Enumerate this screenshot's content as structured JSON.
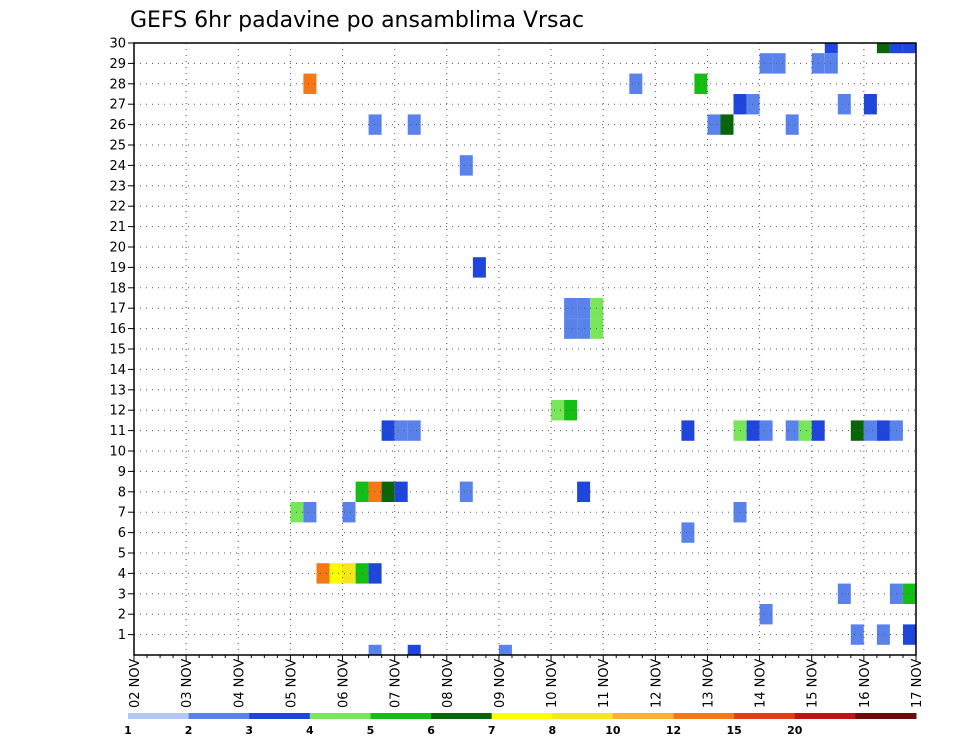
{
  "chart_data": {
    "type": "heatmap",
    "title": "GEFS 6hr padavine po ansamblima Vrsac",
    "y_ticks": [
      "1",
      "2",
      "3",
      "4",
      "5",
      "6",
      "7",
      "8",
      "9",
      "10",
      "11",
      "12",
      "13",
      "14",
      "15",
      "16",
      "17",
      "18",
      "19",
      "20",
      "21",
      "22",
      "23",
      "24",
      "25",
      "26",
      "27",
      "28",
      "29",
      "30"
    ],
    "x_ticks": [
      "02 NOV",
      "03 NOV",
      "04 NOV",
      "05 NOV",
      "06 NOV",
      "07 NOV",
      "08 NOV",
      "09 NOV",
      "10 NOV",
      "11 NOV",
      "12 NOV",
      "13 NOV",
      "14 NOV",
      "15 NOV",
      "16 NOV",
      "17 NOV"
    ],
    "ylim": [
      0,
      30
    ],
    "time_step_hours": 6,
    "grid": true,
    "legend_position": "bottom",
    "legend": {
      "labels": [
        "1",
        "2",
        "3",
        "4",
        "5",
        "6",
        "7",
        "8",
        "10",
        "12",
        "15",
        "20"
      ],
      "colors": [
        "#b4c8f5",
        "#5a82eb",
        "#1e46dc",
        "#78e65a",
        "#14be14",
        "#0a640a",
        "#ffff00",
        "#f5e61e",
        "#ffaf32",
        "#f57814",
        "#e63c14",
        "#be1414",
        "#6e0a0a"
      ]
    },
    "cells": [
      {
        "member": 30,
        "time": "15 NOV 06",
        "cls": 2
      },
      {
        "member": 30,
        "time": "16 NOV 06",
        "cls": 5
      },
      {
        "member": 30,
        "time": "16 NOV 12",
        "cls": 2
      },
      {
        "member": 30,
        "time": "16 NOV 18",
        "cls": 2
      },
      {
        "member": 29,
        "time": "14 NOV 00",
        "cls": 1
      },
      {
        "member": 29,
        "time": "14 NOV 06",
        "cls": 1
      },
      {
        "member": 29,
        "time": "15 NOV 00",
        "cls": 1
      },
      {
        "member": 29,
        "time": "15 NOV 06",
        "cls": 1
      },
      {
        "member": 28,
        "time": "05 NOV 06",
        "cls": 9
      },
      {
        "member": 28,
        "time": "11 NOV 12",
        "cls": 1
      },
      {
        "member": 28,
        "time": "12 NOV 18",
        "cls": 4
      },
      {
        "member": 27,
        "time": "13 NOV 12",
        "cls": 2
      },
      {
        "member": 27,
        "time": "13 NOV 18",
        "cls": 1
      },
      {
        "member": 27,
        "time": "15 NOV 12",
        "cls": 1
      },
      {
        "member": 27,
        "time": "16 NOV 00",
        "cls": 2
      },
      {
        "member": 26,
        "time": "06 NOV 12",
        "cls": 1
      },
      {
        "member": 26,
        "time": "07 NOV 06",
        "cls": 1
      },
      {
        "member": 26,
        "time": "13 NOV 00",
        "cls": 1
      },
      {
        "member": 26,
        "time": "13 NOV 06",
        "cls": 5
      },
      {
        "member": 26,
        "time": "14 NOV 12",
        "cls": 1
      },
      {
        "member": 24,
        "time": "08 NOV 06",
        "cls": 1
      },
      {
        "member": 19,
        "time": "08 NOV 12",
        "cls": 2
      },
      {
        "member": 17,
        "time": "10 NOV 06",
        "cls": 1
      },
      {
        "member": 17,
        "time": "10 NOV 12",
        "cls": 1
      },
      {
        "member": 17,
        "time": "10 NOV 18",
        "cls": 3
      },
      {
        "member": 16,
        "time": "10 NOV 06",
        "cls": 1
      },
      {
        "member": 16,
        "time": "10 NOV 12",
        "cls": 1
      },
      {
        "member": 16,
        "time": "10 NOV 18",
        "cls": 3
      },
      {
        "member": 12,
        "time": "10 NOV 00",
        "cls": 3
      },
      {
        "member": 12,
        "time": "10 NOV 06",
        "cls": 4
      },
      {
        "member": 11,
        "time": "06 NOV 18",
        "cls": 2
      },
      {
        "member": 11,
        "time": "07 NOV 00",
        "cls": 1
      },
      {
        "member": 11,
        "time": "07 NOV 06",
        "cls": 1
      },
      {
        "member": 11,
        "time": "12 NOV 12",
        "cls": 2
      },
      {
        "member": 11,
        "time": "13 NOV 12",
        "cls": 3
      },
      {
        "member": 11,
        "time": "13 NOV 18",
        "cls": 2
      },
      {
        "member": 11,
        "time": "14 NOV 00",
        "cls": 1
      },
      {
        "member": 11,
        "time": "14 NOV 12",
        "cls": 1
      },
      {
        "member": 11,
        "time": "14 NOV 18",
        "cls": 3
      },
      {
        "member": 11,
        "time": "15 NOV 00",
        "cls": 2
      },
      {
        "member": 11,
        "time": "15 NOV 18",
        "cls": 5
      },
      {
        "member": 11,
        "time": "16 NOV 00",
        "cls": 1
      },
      {
        "member": 11,
        "time": "16 NOV 06",
        "cls": 2
      },
      {
        "member": 11,
        "time": "16 NOV 12",
        "cls": 1
      },
      {
        "member": 8,
        "time": "06 NOV 06",
        "cls": 4
      },
      {
        "member": 8,
        "time": "06 NOV 12",
        "cls": 9
      },
      {
        "member": 8,
        "time": "06 NOV 18",
        "cls": 5
      },
      {
        "member": 8,
        "time": "07 NOV 00",
        "cls": 2
      },
      {
        "member": 8,
        "time": "08 NOV 06",
        "cls": 1
      },
      {
        "member": 8,
        "time": "10 NOV 12",
        "cls": 2
      },
      {
        "member": 7,
        "time": "05 NOV 00",
        "cls": 3
      },
      {
        "member": 7,
        "time": "05 NOV 06",
        "cls": 1
      },
      {
        "member": 7,
        "time": "06 NOV 00",
        "cls": 1
      },
      {
        "member": 7,
        "time": "13 NOV 12",
        "cls": 1
      },
      {
        "member": 6,
        "time": "12 NOV 12",
        "cls": 1
      },
      {
        "member": 4,
        "time": "05 NOV 12",
        "cls": 9
      },
      {
        "member": 4,
        "time": "05 NOV 18",
        "cls": 6
      },
      {
        "member": 4,
        "time": "06 NOV 00",
        "cls": 7
      },
      {
        "member": 4,
        "time": "06 NOV 06",
        "cls": 4
      },
      {
        "member": 4,
        "time": "06 NOV 12",
        "cls": 2
      },
      {
        "member": 3,
        "time": "15 NOV 12",
        "cls": 1
      },
      {
        "member": 3,
        "time": "16 NOV 12",
        "cls": 1
      },
      {
        "member": 3,
        "time": "16 NOV 18",
        "cls": 4
      },
      {
        "member": 2,
        "time": "14 NOV 00",
        "cls": 1
      },
      {
        "member": 1,
        "time": "15 NOV 18",
        "cls": 1
      },
      {
        "member": 1,
        "time": "16 NOV 06",
        "cls": 1
      },
      {
        "member": 1,
        "time": "16 NOV 18",
        "cls": 2
      },
      {
        "member": 0,
        "time": "06 NOV 12",
        "cls": 1
      },
      {
        "member": 0,
        "time": "07 NOV 06",
        "cls": 2
      },
      {
        "member": 0,
        "time": "09 NOV 00",
        "cls": 1
      }
    ]
  }
}
